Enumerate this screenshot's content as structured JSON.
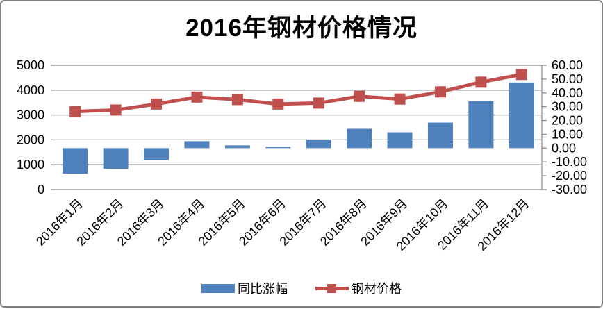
{
  "frame": {
    "background": "#ffffff",
    "border_color": "#7f7f7f"
  },
  "chart_data": {
    "type": "combo-bar-line",
    "title": "2016年钢材价格情况",
    "categories": [
      "2016年1月",
      "2016年2月",
      "2016年3月",
      "2016年4月",
      "2016年5月",
      "2016年6月",
      "2016年7月",
      "2016年8月",
      "2016年9月",
      "2016年10月",
      "2016年11月",
      "2016年12月"
    ],
    "series": [
      {
        "name": "同比涨幅",
        "type": "bar",
        "axis": "right",
        "color": "#4f81bd",
        "values": [
          -18.5,
          -15,
          -8.5,
          5,
          2,
          1,
          6,
          14,
          11.5,
          18.5,
          34,
          47.5
        ]
      },
      {
        "name": "钢材价格",
        "type": "line",
        "axis": "left",
        "color": "#c0504d",
        "values": [
          3140,
          3200,
          3440,
          3720,
          3620,
          3440,
          3480,
          3750,
          3640,
          3930,
          4320,
          4630
        ]
      }
    ],
    "left_axis": {
      "min": 0,
      "max": 5000,
      "tick_values": [
        0,
        1000,
        2000,
        3000,
        4000,
        5000
      ],
      "tick_labels": [
        "0",
        "1000",
        "2000",
        "3000",
        "4000",
        "5000"
      ]
    },
    "right_axis": {
      "min": -30,
      "max": 60,
      "tick_values": [
        -30,
        -20,
        -10,
        0,
        10,
        20,
        30,
        40,
        50,
        60
      ],
      "tick_labels": [
        "-30.00",
        "-20.00",
        "-10.00",
        "0.00",
        "10.00",
        "20.00",
        "30.00",
        "40.00",
        "50.00",
        "60.00"
      ]
    },
    "grid": true,
    "grid_color": "#909090",
    "text_color": "#000000",
    "legend_position": "bottom"
  },
  "legend": {
    "items": [
      {
        "label": "同比涨幅",
        "marker": "bar",
        "color": "#4f81bd"
      },
      {
        "label": "钢材价格",
        "marker": "line-square",
        "color": "#c0504d"
      }
    ]
  }
}
